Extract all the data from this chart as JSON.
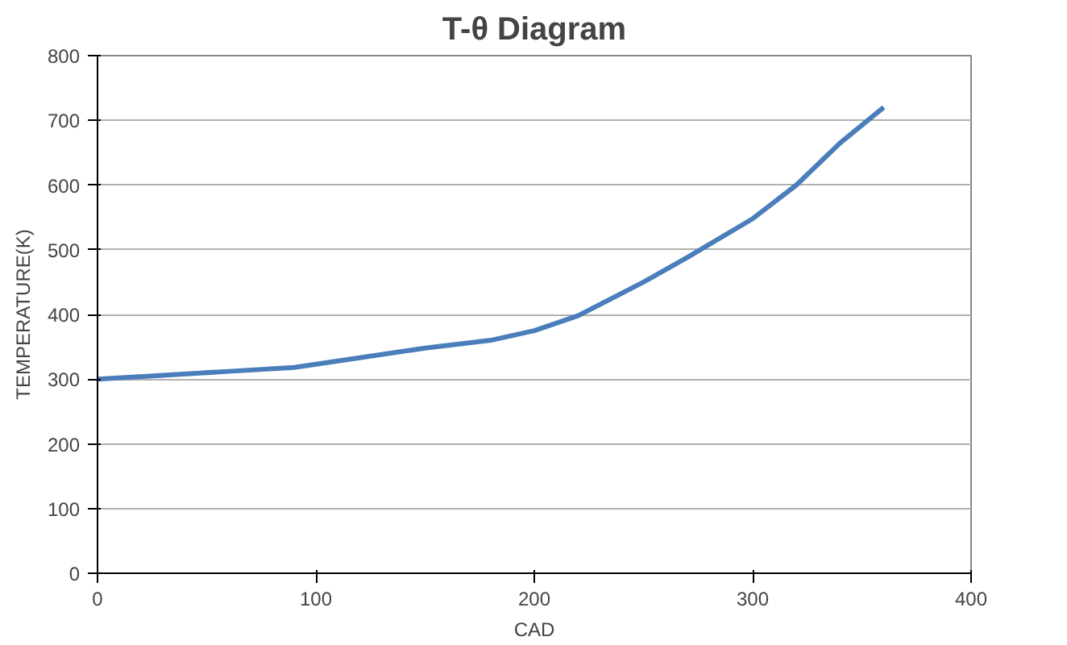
{
  "chart_data": {
    "type": "line",
    "title": "T-θ Diagram",
    "xlabel": "CAD",
    "ylabel": "TEMPERATURE(K)",
    "x": [
      0,
      30,
      60,
      90,
      120,
      150,
      180,
      200,
      220,
      250,
      270,
      300,
      320,
      340,
      360
    ],
    "series": [
      {
        "color": "#4a7ebb",
        "values": [
          300,
          306,
          312,
          318,
          333,
          348,
          360,
          375,
          398,
          450,
          488,
          548,
          600,
          665,
          720
        ]
      }
    ],
    "xlim": [
      0,
      400
    ],
    "xticks": [
      0,
      100,
      200,
      300,
      400
    ],
    "ylim": [
      0,
      800
    ],
    "yticks": [
      0,
      100,
      200,
      300,
      400,
      500,
      600,
      700,
      800
    ],
    "grid": "y",
    "marker": "none",
    "line_style": "solid"
  }
}
